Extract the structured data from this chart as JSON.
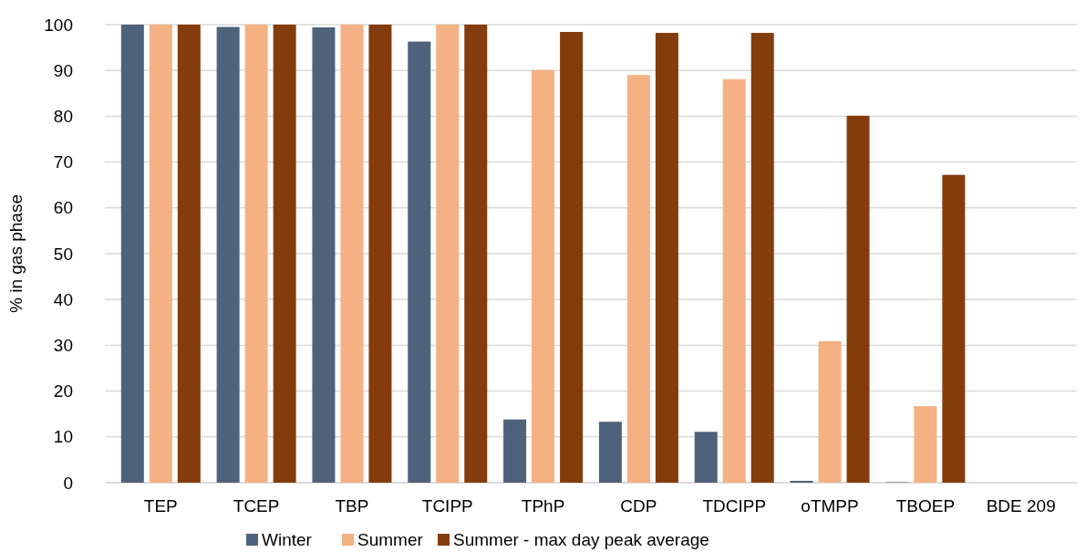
{
  "chart_data": {
    "type": "bar",
    "ylabel": "% in gas phase",
    "categories": [
      "TEP",
      "TCEP",
      "TBP",
      "TCIPP",
      "TPhP",
      "CDP",
      "TDCIPP",
      "oTMPP",
      "TBOEP",
      "BDE 209"
    ],
    "series": [
      {
        "name": "Winter",
        "color": "#4f627c",
        "values": [
          100,
          99.5,
          99.4,
          96.3,
          13.8,
          13.3,
          11.1,
          0.4,
          0.1,
          0
        ]
      },
      {
        "name": "Summer",
        "color": "#f4b183",
        "values": [
          100,
          100,
          100,
          100,
          90.1,
          89.0,
          88.1,
          30.9,
          16.7,
          0
        ]
      },
      {
        "name": "Summer - max day peak average",
        "color": "#843c0c",
        "values": [
          100,
          100,
          100,
          100,
          98.4,
          98.2,
          98.2,
          80.1,
          67.2,
          0
        ]
      }
    ],
    "ylim": [
      0,
      100
    ],
    "yticks": [
      0,
      10,
      20,
      30,
      40,
      50,
      60,
      70,
      80,
      90,
      100
    ],
    "grid": "y",
    "legend": "bottom"
  }
}
